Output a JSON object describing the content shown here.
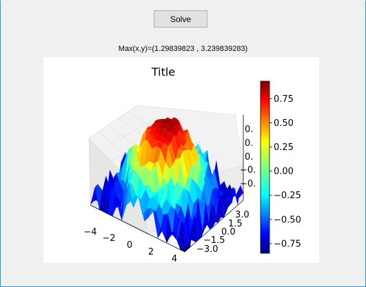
{
  "toolbar": {
    "solve_label": "Solve"
  },
  "result": {
    "max_text": "Max(x,y)=(1.29839823 , 3.239839283)"
  },
  "chart_data": {
    "type": "surface3d",
    "title": "Title",
    "x_ticks": [
      "−4",
      "−2",
      "0",
      "2",
      "4"
    ],
    "y_ticks": [
      "3.0",
      "1.5",
      "0.0",
      "−1.5",
      "−3.0"
    ],
    "z_ticks": [
      "0.",
      "0.",
      "0.",
      "−0.",
      "−0."
    ],
    "colorbar": {
      "colormap": "jet",
      "range": [
        -0.85,
        0.93
      ],
      "ticks": [
        0.75,
        0.5,
        0.25,
        0.0,
        -0.25,
        -0.5,
        -0.75
      ],
      "tick_labels": [
        "0.75",
        "0.50",
        "0.25",
        "0.00",
        "−0.25",
        "−0.50",
        "−0.75"
      ]
    },
    "x_range": [
      -4,
      4
    ],
    "y_range": [
      -3.2,
      3.2
    ],
    "surface_note": "peak around center, noisy rim"
  }
}
